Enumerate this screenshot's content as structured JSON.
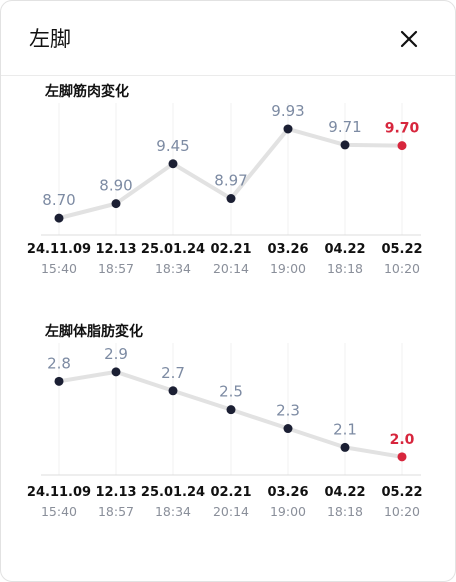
{
  "header": {
    "title": "左脚",
    "close_icon": "close-icon"
  },
  "colors": {
    "point": "#1b1f33",
    "highlight": "#d7263d",
    "line": "#e2e2e2",
    "label": "#7d8ba3"
  },
  "chart_data": [
    {
      "type": "line",
      "title": "左脚筋肉変化",
      "dates": [
        "24.11.09",
        "12.13",
        "25.01.24",
        "02.21",
        "03.26",
        "04.22",
        "05.22"
      ],
      "times": [
        "15:40",
        "18:57",
        "18:34",
        "20:14",
        "19:00",
        "18:18",
        "10:20"
      ],
      "values": [
        8.7,
        8.9,
        9.45,
        8.97,
        9.93,
        9.71,
        9.7
      ],
      "value_labels": [
        "8.70",
        "8.90",
        "9.45",
        "8.97",
        "9.93",
        "9.71",
        "9.70"
      ],
      "highlight_index": 6,
      "ylim": [
        8.55,
        10.15
      ],
      "grid": true
    },
    {
      "type": "line",
      "title": "左脚体脂肪変化",
      "dates": [
        "24.11.09",
        "12.13",
        "25.01.24",
        "02.21",
        "03.26",
        "04.22",
        "05.22"
      ],
      "times": [
        "15:40",
        "18:57",
        "18:34",
        "20:14",
        "19:00",
        "18:18",
        "10:20"
      ],
      "values": [
        2.8,
        2.9,
        2.7,
        2.5,
        2.3,
        2.1,
        2.0
      ],
      "value_labels": [
        "2.8",
        "2.9",
        "2.7",
        "2.5",
        "2.3",
        "2.1",
        "2.0"
      ],
      "highlight_index": 6,
      "ylim": [
        1.85,
        3.1
      ],
      "grid": true
    }
  ]
}
